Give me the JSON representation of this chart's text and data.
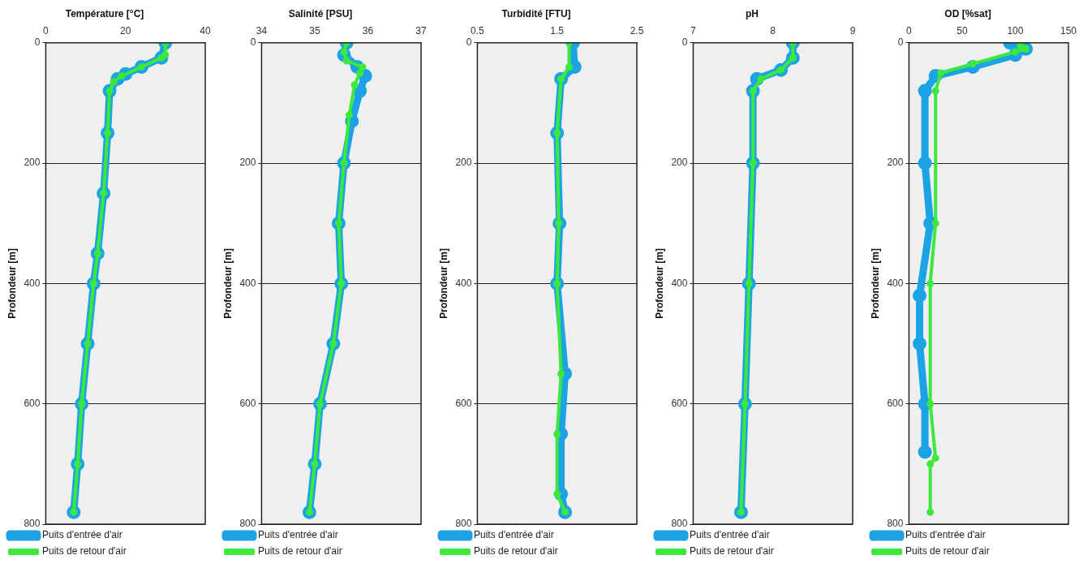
{
  "chart_data": [
    {
      "type": "line",
      "title": "Température [°C]",
      "ylabel": "Profondeur [m]",
      "xlim": [
        0,
        40
      ],
      "xticks": [
        0,
        20,
        40
      ],
      "ylim": [
        800,
        0
      ],
      "yticks": [
        0,
        200,
        400,
        600,
        800
      ],
      "grid": "y",
      "legend": "bottom",
      "marker": "circle",
      "line_style": "solid",
      "series": [
        {
          "name": "Puits d'entrée d'air",
          "color": "#1ca3e6",
          "x": [
            30,
            29,
            24,
            20,
            18,
            16,
            15.5,
            14.5,
            13,
            12,
            10.5,
            9,
            8,
            7
          ],
          "values": [
            0,
            25,
            40,
            52,
            60,
            80,
            150,
            250,
            350,
            400,
            500,
            600,
            700,
            780
          ]
        },
        {
          "name": "Puits de retour d'air",
          "color": "#3de83d",
          "x": [
            30,
            30,
            29,
            24,
            19,
            17,
            16,
            15.5,
            14.5,
            13,
            12,
            10.5,
            9,
            8,
            7
          ],
          "values": [
            0,
            20,
            25,
            40,
            55,
            65,
            80,
            150,
            250,
            350,
            400,
            500,
            600,
            700,
            780
          ]
        }
      ]
    },
    {
      "type": "line",
      "title": "Salinité [PSU]",
      "ylabel": "Profondeur [m]",
      "xlim": [
        34,
        37
      ],
      "xticks": [
        34,
        35,
        36,
        37
      ],
      "ylim": [
        800,
        0
      ],
      "yticks": [
        0,
        200,
        400,
        600,
        800
      ],
      "grid": "y",
      "legend": "bottom",
      "marker": "circle",
      "line_style": "solid",
      "series": [
        {
          "name": "Puits d'entrée d'air",
          "color": "#1ca3e6",
          "x": [
            35.6,
            35.55,
            35.8,
            35.95,
            35.85,
            35.7,
            35.55,
            35.45,
            35.5,
            35.35,
            35.1,
            35.0,
            34.9
          ],
          "values": [
            0,
            20,
            40,
            55,
            80,
            130,
            200,
            300,
            400,
            500,
            600,
            700,
            780
          ]
        },
        {
          "name": "Puits de retour d'air",
          "color": "#3de83d",
          "x": [
            35.6,
            35.55,
            35.6,
            35.9,
            35.85,
            35.75,
            35.65,
            35.55,
            35.45,
            35.5,
            35.35,
            35.1,
            35.0,
            34.9
          ],
          "values": [
            0,
            15,
            30,
            40,
            50,
            70,
            120,
            200,
            300,
            400,
            500,
            600,
            700,
            780
          ]
        }
      ]
    },
    {
      "type": "line",
      "title": "Turbidité [FTU]",
      "ylabel": "Profondeur [m]",
      "xlim": [
        0.5,
        2.5
      ],
      "xticks": [
        0.5,
        1.5,
        2.5
      ],
      "ylim": [
        800,
        0
      ],
      "yticks": [
        0,
        200,
        400,
        600,
        800
      ],
      "grid": "y",
      "legend": "bottom",
      "marker": "circle",
      "line_style": "solid",
      "series": [
        {
          "name": "Puits d'entrée d'air",
          "color": "#1ca3e6",
          "x": [
            1.7,
            1.72,
            1.55,
            1.5,
            1.53,
            1.5,
            1.6,
            1.55,
            1.55,
            1.6
          ],
          "values": [
            0,
            40,
            60,
            150,
            300,
            400,
            550,
            650,
            750,
            780
          ]
        },
        {
          "name": "Puits de retour d'air",
          "color": "#3de83d",
          "x": [
            1.65,
            1.65,
            1.55,
            1.5,
            1.52,
            1.5,
            1.55,
            1.5,
            1.5,
            1.6
          ],
          "values": [
            0,
            40,
            60,
            150,
            300,
            400,
            550,
            650,
            750,
            780
          ]
        }
      ]
    },
    {
      "type": "line",
      "title": "pH",
      "ylabel": "Profondeur [m]",
      "xlim": [
        7,
        9
      ],
      "xticks": [
        7,
        8,
        9
      ],
      "ylim": [
        800,
        0
      ],
      "yticks": [
        0,
        200,
        400,
        600,
        800
      ],
      "grid": "y",
      "legend": "bottom",
      "marker": "circle",
      "line_style": "solid",
      "series": [
        {
          "name": "Puits d'entrée d'air",
          "color": "#1ca3e6",
          "x": [
            8.25,
            8.25,
            8.1,
            7.8,
            7.75,
            7.75,
            7.7,
            7.65,
            7.6
          ],
          "values": [
            0,
            25,
            45,
            60,
            80,
            200,
            400,
            600,
            780
          ]
        },
        {
          "name": "Puits de retour d'air",
          "color": "#3de83d",
          "x": [
            8.25,
            8.25,
            8.1,
            7.85,
            7.75,
            7.75,
            7.7,
            7.65,
            7.6
          ],
          "values": [
            0,
            25,
            45,
            60,
            80,
            200,
            400,
            600,
            780
          ]
        }
      ]
    },
    {
      "type": "line",
      "title": "OD [%sat]",
      "ylabel": "Profondeur [m]",
      "xlim": [
        0,
        150
      ],
      "xticks": [
        0,
        50,
        100,
        150
      ],
      "ylim": [
        800,
        0
      ],
      "yticks": [
        0,
        200,
        400,
        600,
        800
      ],
      "grid": "y",
      "legend": "bottom",
      "marker": "circle",
      "line_style": "solid",
      "series": [
        {
          "name": "Puits d'entrée d'air",
          "color": "#1ca3e6",
          "x": [
            95,
            110,
            100,
            60,
            25,
            15,
            15,
            20,
            10,
            10,
            15,
            15
          ],
          "values": [
            0,
            10,
            20,
            40,
            55,
            80,
            200,
            300,
            420,
            500,
            600,
            680
          ]
        },
        {
          "name": "Puits de retour d'air",
          "color": "#3de83d",
          "x": [
            105,
            110,
            100,
            60,
            30,
            25,
            25,
            20,
            20,
            25,
            20,
            20
          ],
          "values": [
            5,
            10,
            15,
            35,
            50,
            80,
            300,
            400,
            600,
            690,
            700,
            780
          ]
        }
      ]
    }
  ]
}
